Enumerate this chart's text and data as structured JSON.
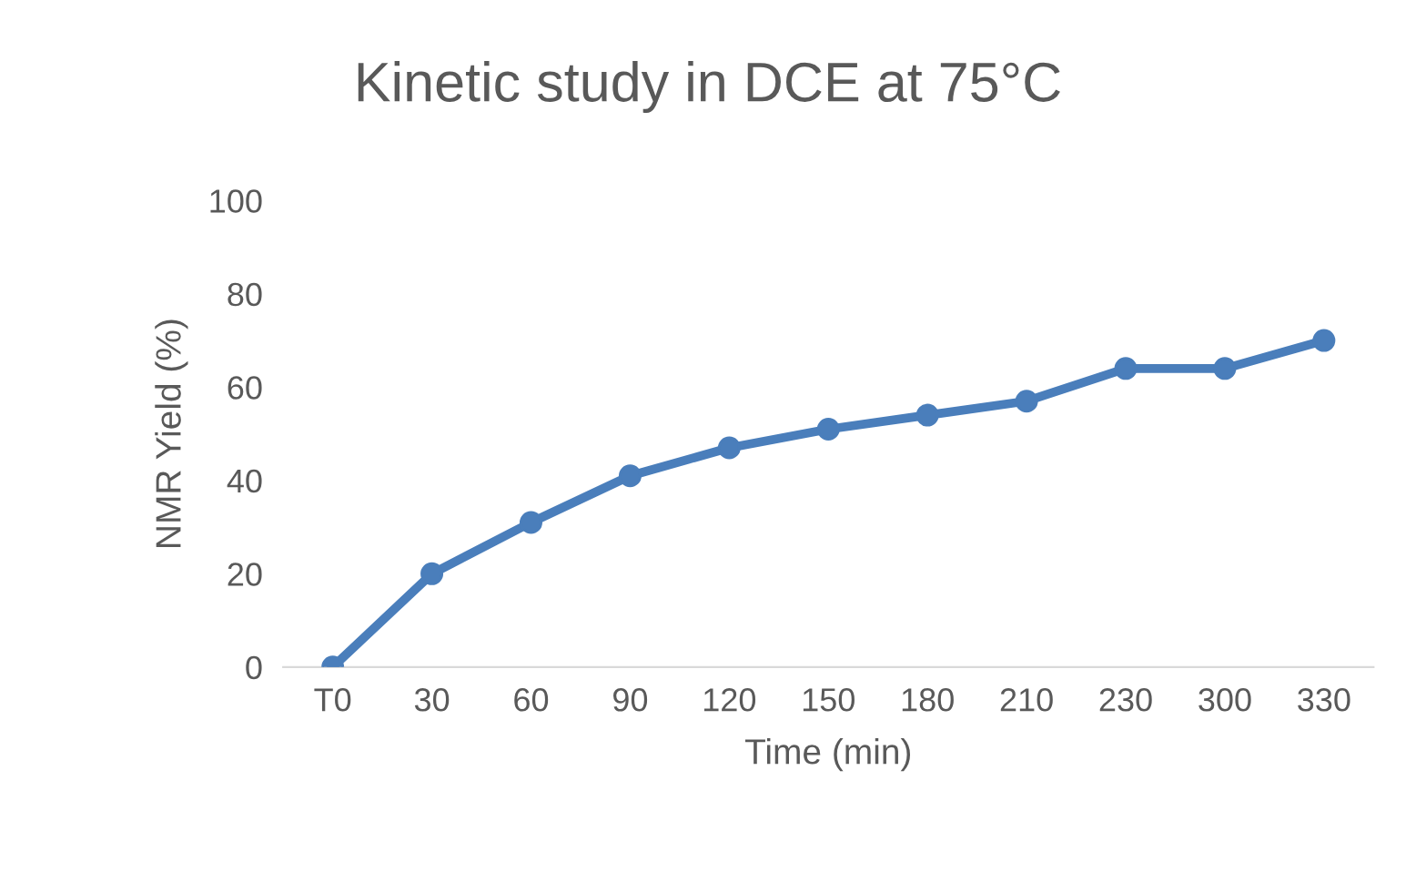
{
  "chart_data": {
    "type": "line",
    "title": "Kinetic study in DCE at 75°C",
    "xlabel": "Time (min)",
    "ylabel": "NMR Yield (%)",
    "categories": [
      "T0",
      "30",
      "60",
      "90",
      "120",
      "150",
      "180",
      "210",
      "230",
      "300",
      "330"
    ],
    "series": [
      {
        "color": "#4a7ebb",
        "values": [
          0,
          20,
          31,
          41,
          47,
          51,
          54,
          57,
          64,
          64,
          70
        ]
      }
    ],
    "ylim": [
      0,
      100
    ],
    "yticks": [
      0,
      20,
      40,
      60,
      80,
      100
    ],
    "grid": false,
    "marker": "circle",
    "line_style": "solid"
  }
}
